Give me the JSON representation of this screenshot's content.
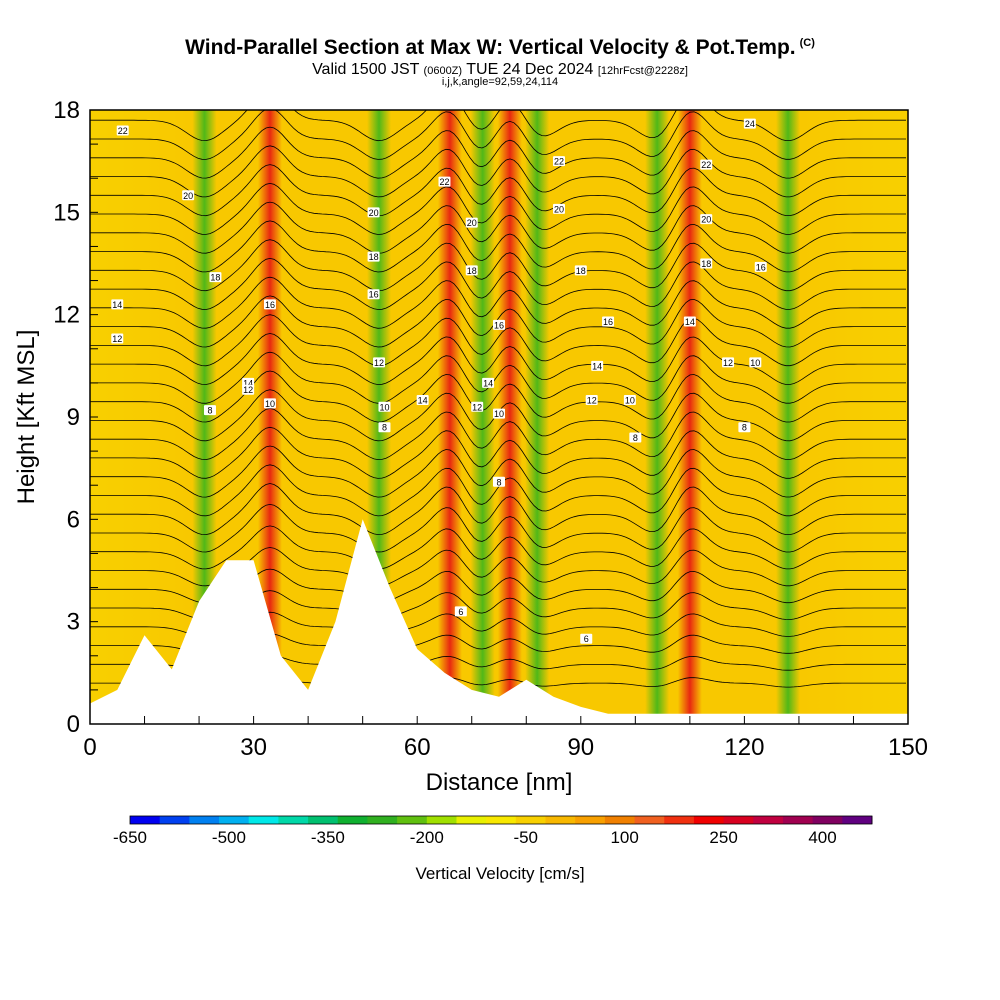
{
  "header": {
    "title": "Wind-Parallel Section at Max W: Vertical Velocity & Pot.Temp.",
    "title_unit": "(C)",
    "valid_prefix": "Valid 1500 JST",
    "valid_utc": "(0600Z)",
    "valid_date": "TUE 24 Dec 2024",
    "forecast": "[12hrFcst@2228z]",
    "indices": "i,j,k,angle=92,59,24,114"
  },
  "chart_data": {
    "type": "heatmap",
    "xlabel": "Distance [nm]",
    "ylabel": "Height [Kft MSL]",
    "xlim": [
      0,
      150
    ],
    "ylim": [
      0,
      18
    ],
    "x_ticks": [
      0,
      30,
      60,
      90,
      120,
      150
    ],
    "y_ticks": [
      0,
      3,
      6,
      9,
      12,
      15,
      18
    ],
    "colorbar": {
      "label": "Vertical Velocity [cm/s]",
      "tick_labels": [
        "-650",
        "-500",
        "-350",
        "-200",
        "-50",
        "100",
        "250",
        "400"
      ],
      "tick_values": [
        -650,
        -500,
        -350,
        -200,
        -50,
        100,
        250,
        400
      ],
      "range": [
        -650,
        475
      ],
      "colors": [
        "#0000f0",
        "#0040f0",
        "#0080f0",
        "#00b0f0",
        "#00e8e8",
        "#00d8a8",
        "#00c070",
        "#10b030",
        "#30b020",
        "#60c010",
        "#a0e000",
        "#e8f000",
        "#f8e800",
        "#f8d000",
        "#f8b800",
        "#f8a000",
        "#f08000",
        "#f06020",
        "#f03010",
        "#f00000",
        "#d80020",
        "#c00040",
        "#a00050",
        "#800060",
        "#600080"
      ]
    },
    "updrafts_nm": [
      33,
      66,
      77,
      110
    ],
    "downdrafts_nm": [
      21,
      53,
      72,
      82,
      104,
      128
    ],
    "terrain": {
      "x_nm": [
        0,
        5,
        10,
        15,
        20,
        25,
        30,
        35,
        40,
        45,
        50,
        55,
        60,
        65,
        70,
        75,
        80,
        85,
        90,
        95,
        100,
        110,
        120,
        130,
        140,
        150
      ],
      "height_kft": [
        0.6,
        1.0,
        2.6,
        1.6,
        3.6,
        4.8,
        4.8,
        2.0,
        1.0,
        3.0,
        6.0,
        4.0,
        2.2,
        1.5,
        1.0,
        0.8,
        1.3,
        0.8,
        0.5,
        0.3,
        0.3,
        0.3,
        0.3,
        0.3,
        0.3,
        0.3
      ]
    },
    "isentrope_labels": [
      {
        "x": 6,
        "y": 17.4,
        "text": "22"
      },
      {
        "x": 18,
        "y": 15.5,
        "text": "20"
      },
      {
        "x": 23,
        "y": 13.1,
        "text": "18"
      },
      {
        "x": 5,
        "y": 12.3,
        "text": "14"
      },
      {
        "x": 5,
        "y": 11.3,
        "text": "12"
      },
      {
        "x": 33,
        "y": 12.3,
        "text": "16"
      },
      {
        "x": 29,
        "y": 10.0,
        "text": "14"
      },
      {
        "x": 29,
        "y": 9.8,
        "text": "12"
      },
      {
        "x": 33,
        "y": 9.4,
        "text": "10"
      },
      {
        "x": 22,
        "y": 9.2,
        "text": "8"
      },
      {
        "x": 52,
        "y": 15.0,
        "text": "20"
      },
      {
        "x": 52,
        "y": 13.7,
        "text": "18"
      },
      {
        "x": 52,
        "y": 12.6,
        "text": "16"
      },
      {
        "x": 53,
        "y": 10.6,
        "text": "12"
      },
      {
        "x": 54,
        "y": 9.3,
        "text": "10"
      },
      {
        "x": 54,
        "y": 8.7,
        "text": "8"
      },
      {
        "x": 61,
        "y": 9.5,
        "text": "14"
      },
      {
        "x": 65,
        "y": 15.9,
        "text": "22"
      },
      {
        "x": 70,
        "y": 14.7,
        "text": "20"
      },
      {
        "x": 70,
        "y": 13.3,
        "text": "18"
      },
      {
        "x": 75,
        "y": 11.7,
        "text": "16"
      },
      {
        "x": 73,
        "y": 10.0,
        "text": "14"
      },
      {
        "x": 71,
        "y": 9.3,
        "text": "12"
      },
      {
        "x": 75,
        "y": 9.1,
        "text": "10"
      },
      {
        "x": 75,
        "y": 7.1,
        "text": "8"
      },
      {
        "x": 86,
        "y": 16.5,
        "text": "22"
      },
      {
        "x": 86,
        "y": 15.1,
        "text": "20"
      },
      {
        "x": 90,
        "y": 13.3,
        "text": "18"
      },
      {
        "x": 95,
        "y": 11.8,
        "text": "16"
      },
      {
        "x": 93,
        "y": 10.5,
        "text": "14"
      },
      {
        "x": 92,
        "y": 9.5,
        "text": "12"
      },
      {
        "x": 99,
        "y": 9.5,
        "text": "10"
      },
      {
        "x": 100,
        "y": 8.4,
        "text": "8"
      },
      {
        "x": 68,
        "y": 3.3,
        "text": "6"
      },
      {
        "x": 91,
        "y": 2.5,
        "text": "6"
      },
      {
        "x": 121,
        "y": 17.6,
        "text": "24"
      },
      {
        "x": 113,
        "y": 16.4,
        "text": "22"
      },
      {
        "x": 113,
        "y": 14.8,
        "text": "20"
      },
      {
        "x": 113,
        "y": 13.5,
        "text": "18"
      },
      {
        "x": 123,
        "y": 13.4,
        "text": "16"
      },
      {
        "x": 110,
        "y": 11.8,
        "text": "14"
      },
      {
        "x": 117,
        "y": 10.6,
        "text": "12"
      },
      {
        "x": 122,
        "y": 10.6,
        "text": "10"
      },
      {
        "x": 120,
        "y": 8.7,
        "text": "8"
      }
    ]
  }
}
